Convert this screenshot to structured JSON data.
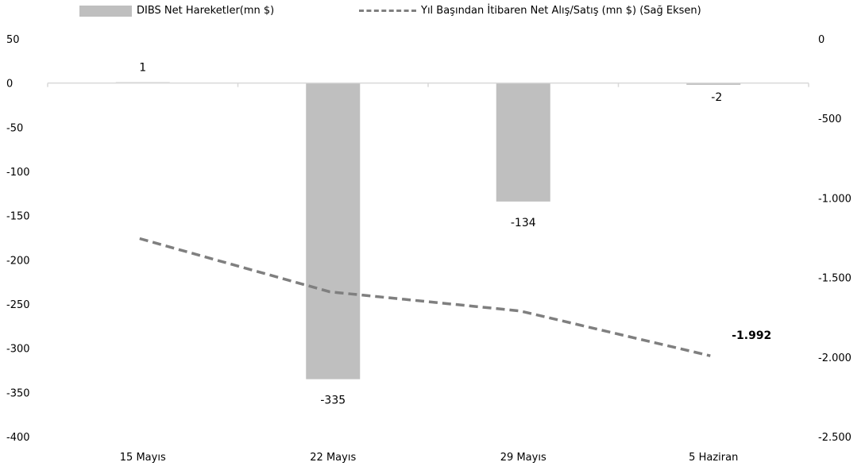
{
  "chart_data": {
    "type": "bar",
    "categories": [
      "15 Mayıs",
      "22 Mayıs",
      "29 Mayıs",
      "5 Haziran"
    ],
    "series": [
      {
        "name": "DIBS Net Hareketler(mn $)",
        "type": "bar",
        "axis": "left",
        "values": [
          1,
          -335,
          -134,
          -2
        ],
        "data_labels": [
          "1",
          "-335",
          "-134",
          "-2"
        ],
        "color": "#bfbfbf"
      },
      {
        "name": "Yıl Başından İtibaren Net Alış/Satış (mn $) (Sağ Eksen)",
        "type": "line",
        "axis": "right",
        "style": "dashed",
        "values": [
          -1255,
          -1590,
          -1710,
          -1992
        ],
        "data_labels": [
          "",
          "",
          "",
          "-1.992"
        ],
        "color": "#7f7f7f"
      }
    ],
    "left_axis": {
      "ylim": [
        -400,
        50
      ],
      "ticks": [
        50,
        0,
        -50,
        -100,
        -150,
        -200,
        -250,
        -300,
        -350,
        -400
      ],
      "tick_labels": [
        "50",
        "0",
        "-50",
        "-100",
        "-150",
        "-200",
        "-250",
        "-300",
        "-350",
        "-400"
      ]
    },
    "right_axis": {
      "ylim": [
        -2500,
        0
      ],
      "ticks": [
        0,
        -500,
        -1000,
        -1500,
        -2000,
        -2500
      ],
      "tick_labels": [
        "0",
        "-500",
        "-1.000",
        "-1.500",
        "-2.000",
        "-2.500"
      ]
    },
    "legend": {
      "position": "top",
      "entries": [
        "DIBS Net Hareketler(mn $)",
        "Yıl Başından İtibaren Net Alış/Satış (mn $) (Sağ Eksen)"
      ]
    },
    "grid": false
  }
}
